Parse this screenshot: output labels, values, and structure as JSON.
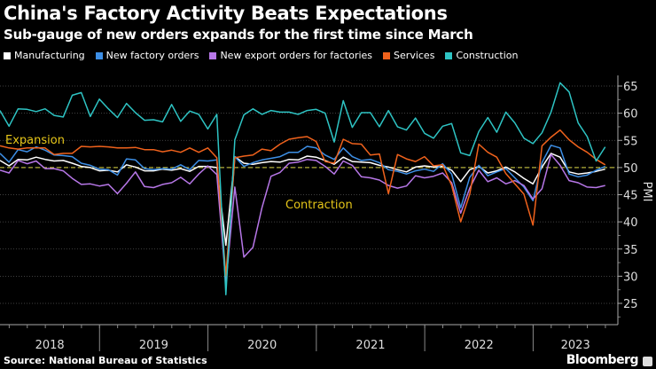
{
  "header": {
    "title": "China's Factory Activity Beats Expectations",
    "subtitle": "Sub-gauge of new orders expands for the first time since March"
  },
  "footer": {
    "source": "Source: National Bureau of Statistics",
    "brand": "Bloomberg"
  },
  "chart_data": {
    "type": "line",
    "title": "China's Factory Activity Beats Expectations",
    "subtitle": "Sub-gauge of new orders expands for the first time since March",
    "x_start": "2018-01",
    "x_end": "2023-08",
    "x_frequency": "monthly",
    "xtick_labels": [
      "2018",
      "2019",
      "2020",
      "2021",
      "2022",
      "2023"
    ],
    "ylabel": "PMI",
    "ylim": [
      22,
      67
    ],
    "yticks": [
      25,
      30,
      35,
      40,
      45,
      50,
      55,
      60,
      65
    ],
    "y_axis_side": "right",
    "grid": true,
    "legend_position": "top",
    "reference_line": {
      "value": 50,
      "style": "dashed",
      "color": "#b5b03a"
    },
    "annotations": [
      {
        "text": "Expansion",
        "color": "#e6c619"
      },
      {
        "text": "Contraction",
        "color": "#e6c619"
      }
    ],
    "series": [
      {
        "name": "Manufacturing",
        "color": "#ffffff",
        "values": [
          51.3,
          50.3,
          51.5,
          51.4,
          51.9,
          51.5,
          51.2,
          51.3,
          50.8,
          50.2,
          50.0,
          49.4,
          49.5,
          49.2,
          50.5,
          50.1,
          49.4,
          49.4,
          49.7,
          49.5,
          49.8,
          49.3,
          50.2,
          50.2,
          50.0,
          35.7,
          52.0,
          50.8,
          50.6,
          50.9,
          51.1,
          51.0,
          51.5,
          51.4,
          52.1,
          51.9,
          51.3,
          50.6,
          51.9,
          51.1,
          51.0,
          50.9,
          50.4,
          50.1,
          49.6,
          49.2,
          50.1,
          50.3,
          50.1,
          50.2,
          49.5,
          47.4,
          49.6,
          50.2,
          49.0,
          49.4,
          50.1,
          49.2,
          48.0,
          47.0,
          50.1,
          52.6,
          51.9,
          49.2,
          48.8,
          49.0,
          49.3,
          49.7
        ]
      },
      {
        "name": "New factory orders",
        "color": "#3d8fe6",
        "values": [
          52.6,
          51.0,
          53.3,
          52.9,
          53.8,
          53.2,
          52.3,
          52.2,
          52.0,
          50.8,
          50.4,
          49.7,
          49.6,
          48.6,
          51.6,
          51.4,
          49.8,
          49.6,
          49.8,
          49.7,
          50.5,
          49.6,
          51.3,
          51.2,
          51.4,
          29.3,
          52.0,
          50.2,
          50.9,
          51.4,
          51.7,
          52.0,
          52.8,
          52.8,
          53.9,
          53.6,
          52.3,
          51.5,
          53.6,
          52.0,
          51.3,
          51.5,
          50.9,
          49.6,
          49.3,
          48.8,
          49.4,
          49.7,
          49.3,
          50.7,
          48.8,
          42.6,
          48.2,
          50.4,
          48.5,
          49.2,
          49.8,
          48.1,
          46.4,
          43.9,
          50.9,
          54.1,
          53.6,
          48.8,
          48.3,
          48.6,
          49.5,
          50.2
        ]
      },
      {
        "name": "New export orders for factories",
        "color": "#b777e8",
        "values": [
          49.5,
          49.0,
          51.3,
          50.7,
          51.2,
          49.8,
          49.8,
          49.4,
          48.0,
          46.9,
          47.0,
          46.6,
          46.9,
          45.2,
          47.1,
          49.2,
          46.5,
          46.3,
          46.9,
          47.2,
          48.2,
          47.0,
          48.8,
          50.3,
          48.7,
          28.7,
          46.4,
          33.5,
          35.3,
          42.6,
          48.4,
          49.1,
          50.8,
          51.0,
          51.5,
          51.3,
          50.2,
          48.8,
          51.2,
          50.4,
          48.3,
          48.1,
          47.7,
          46.7,
          46.2,
          46.6,
          48.5,
          48.1,
          48.4,
          49.0,
          47.2,
          41.6,
          46.2,
          49.5,
          47.4,
          48.1,
          47.0,
          47.6,
          46.7,
          44.2,
          46.1,
          52.4,
          50.4,
          47.6,
          47.2,
          46.4,
          46.3,
          46.7
        ]
      },
      {
        "name": "Services",
        "color": "#f0621c",
        "values": [
          54.0,
          53.6,
          53.4,
          53.6,
          53.6,
          53.6,
          52.4,
          52.6,
          52.6,
          53.9,
          53.8,
          53.9,
          53.8,
          53.6,
          53.6,
          53.7,
          53.3,
          53.3,
          52.9,
          53.2,
          52.8,
          53.6,
          52.8,
          53.6,
          51.8,
          30.1,
          51.8,
          52.1,
          52.3,
          53.4,
          53.1,
          54.3,
          55.2,
          55.5,
          55.7,
          54.8,
          51.1,
          50.8,
          55.2,
          54.4,
          54.3,
          52.3,
          52.5,
          45.2,
          52.4,
          51.6,
          51.1,
          52.0,
          50.3,
          50.5,
          46.7,
          40.0,
          45.1,
          54.3,
          52.8,
          51.9,
          48.9,
          47.0,
          45.1,
          39.4,
          54.0,
          55.6,
          56.9,
          55.1,
          53.8,
          52.8,
          51.5,
          50.5
        ]
      },
      {
        "name": "Construction",
        "color": "#2ec4c4",
        "values": [
          60.5,
          57.6,
          60.8,
          60.7,
          60.3,
          60.8,
          59.6,
          59.3,
          63.3,
          63.8,
          59.4,
          62.6,
          60.8,
          59.2,
          61.8,
          60.1,
          58.7,
          58.8,
          58.4,
          61.6,
          58.5,
          60.4,
          59.8,
          57.1,
          59.8,
          26.6,
          55.1,
          59.7,
          60.8,
          59.8,
          60.5,
          60.2,
          60.2,
          59.8,
          60.5,
          60.7,
          60.0,
          54.7,
          62.3,
          57.4,
          60.1,
          60.1,
          57.5,
          60.5,
          57.5,
          56.9,
          59.1,
          56.3,
          55.4,
          57.6,
          58.1,
          52.7,
          52.2,
          56.6,
          59.2,
          56.5,
          60.2,
          58.2,
          55.4,
          54.4,
          56.4,
          60.2,
          65.6,
          63.9,
          58.2,
          55.7,
          51.2,
          53.8
        ]
      }
    ]
  }
}
